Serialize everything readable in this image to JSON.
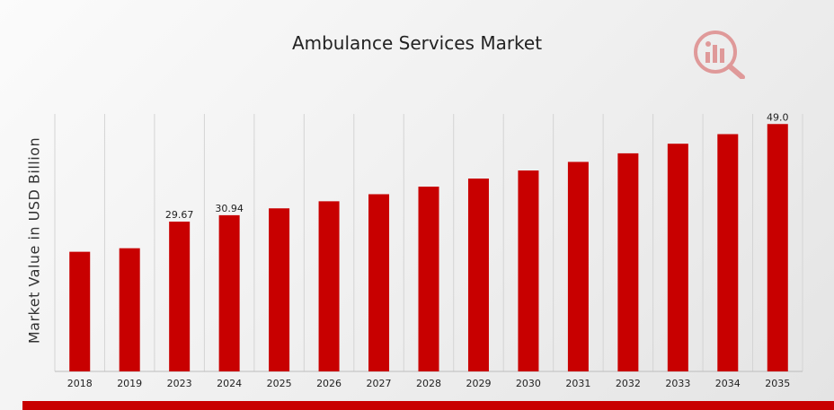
{
  "chart_data": {
    "type": "bar",
    "title": "Ambulance Services Market",
    "ylabel": "Market Value in USD Billion",
    "xlabel": "",
    "categories": [
      "2018",
      "2019",
      "2023",
      "2024",
      "2025",
      "2026",
      "2027",
      "2028",
      "2029",
      "2030",
      "2031",
      "2032",
      "2033",
      "2034",
      "2035"
    ],
    "values": [
      23.7,
      24.4,
      29.67,
      30.94,
      32.3,
      33.7,
      35.1,
      36.6,
      38.2,
      39.8,
      41.5,
      43.2,
      45.1,
      47.0,
      49.0
    ],
    "data_labels": [
      {
        "index": 2,
        "text": "29.67"
      },
      {
        "index": 3,
        "text": "30.94"
      },
      {
        "index": 14,
        "text": "49.0"
      }
    ],
    "ylim": [
      0,
      51
    ],
    "grid": "vertical",
    "y_ticks_visible": false,
    "bar_color": "#c80000",
    "grid_color": "#d4d4d4",
    "legend": "none"
  },
  "logo": {
    "icon": "market-research-logo-icon"
  },
  "accent_color": "#c80000"
}
